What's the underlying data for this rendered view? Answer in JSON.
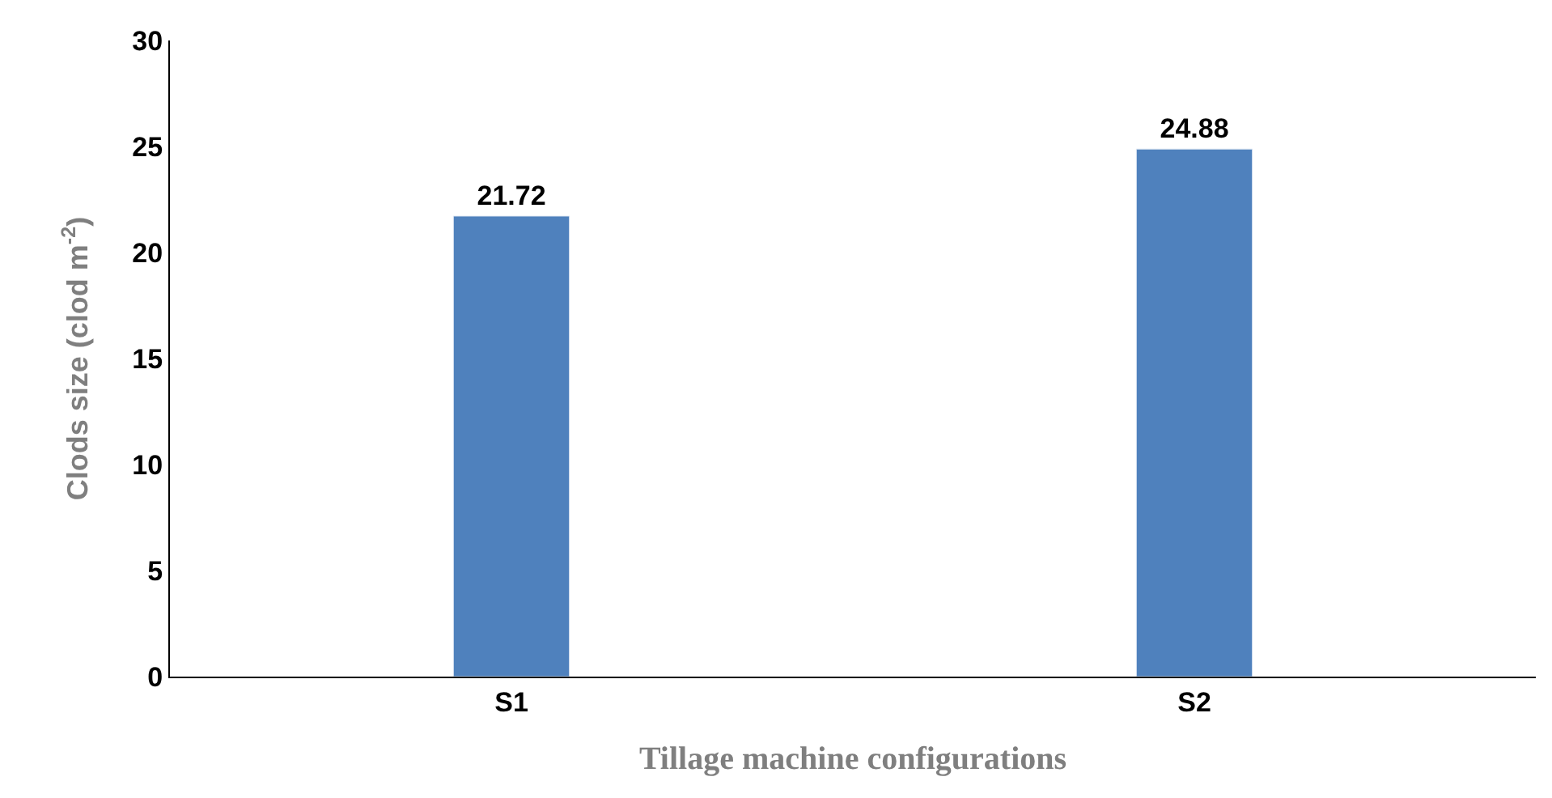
{
  "chart_data": {
    "type": "bar",
    "categories": [
      "S1",
      "S2"
    ],
    "values": [
      21.72,
      24.88
    ],
    "color": "#4f81bd",
    "ylabel": "Clods size (clod m$^{-2}$)",
    "xlabel": "Tillage machine configurations",
    "ylim": [
      0,
      30
    ],
    "yticks": [
      0,
      5,
      10,
      15,
      20,
      25,
      30
    ],
    "data_labels": true
  }
}
